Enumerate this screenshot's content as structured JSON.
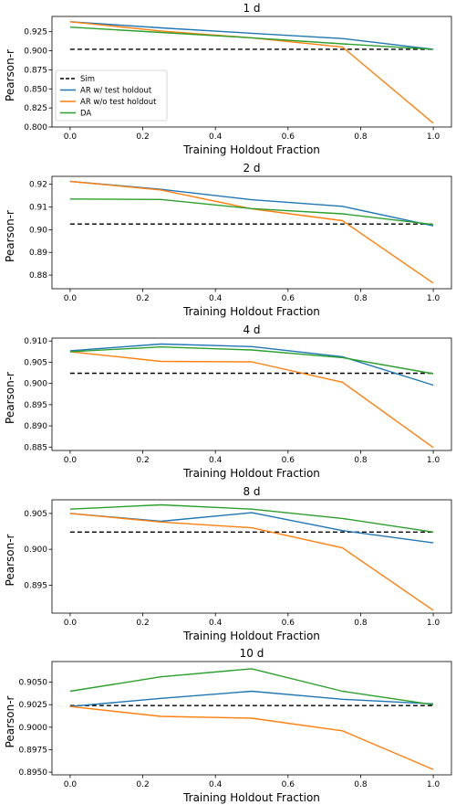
{
  "chart_data": [
    {
      "type": "line",
      "title": "1 d",
      "xlabel": "Training Holdout Fraction",
      "ylabel": "Pearson-r",
      "x": [
        0.0,
        0.25,
        0.5,
        0.75,
        1.0
      ],
      "xlim": [
        -0.05,
        1.05
      ],
      "ylim": [
        0.8,
        0.945
      ],
      "xticks": [
        "0.0",
        "0.2",
        "0.4",
        "0.6",
        "0.8",
        "1.0"
      ],
      "yticks": [
        "0.800",
        "0.825",
        "0.850",
        "0.875",
        "0.900",
        "0.925"
      ],
      "legend": {
        "placement": "center-left",
        "entries": [
          "Sim",
          "AR w/ test holdout",
          "AR w/o test holdout",
          "DA"
        ]
      },
      "series": [
        {
          "name": "Sim",
          "color": "#000000",
          "dashed": true,
          "values": [
            0.902,
            0.902,
            0.902,
            0.902,
            0.902
          ]
        },
        {
          "name": "AR w/ test holdout",
          "color": "#1f77b4",
          "values": [
            0.938,
            0.93,
            0.923,
            0.916,
            0.902
          ]
        },
        {
          "name": "AR w/o test holdout",
          "color": "#ff7f0e",
          "values": [
            0.938,
            0.926,
            0.917,
            0.905,
            0.805
          ]
        },
        {
          "name": "DA",
          "color": "#2ca02c",
          "values": [
            0.931,
            0.924,
            0.917,
            0.909,
            0.902
          ]
        }
      ]
    },
    {
      "type": "line",
      "title": "2 d",
      "xlabel": "Training Holdout Fraction",
      "ylabel": "Pearson-r",
      "x": [
        0.0,
        0.25,
        0.5,
        0.75,
        1.0
      ],
      "xlim": [
        -0.05,
        1.05
      ],
      "ylim": [
        0.874,
        0.9235
      ],
      "xticks": [
        "0.0",
        "0.2",
        "0.4",
        "0.6",
        "0.8",
        "1.0"
      ],
      "yticks": [
        "0.88",
        "0.89",
        "0.90",
        "0.91",
        "0.92"
      ],
      "series": [
        {
          "name": "Sim",
          "color": "#000000",
          "dashed": true,
          "values": [
            0.9025,
            0.9025,
            0.9025,
            0.9025,
            0.9025
          ]
        },
        {
          "name": "AR w/ test holdout",
          "color": "#1f77b4",
          "values": [
            0.9213,
            0.9178,
            0.9132,
            0.9103,
            0.9017
          ]
        },
        {
          "name": "AR w/o test holdout",
          "color": "#ff7f0e",
          "values": [
            0.9213,
            0.9175,
            0.9092,
            0.904,
            0.8765
          ]
        },
        {
          "name": "DA",
          "color": "#2ca02c",
          "values": [
            0.9135,
            0.9133,
            0.9093,
            0.907,
            0.9023
          ]
        }
      ]
    },
    {
      "type": "line",
      "title": "4 d",
      "xlabel": "Training Holdout Fraction",
      "ylabel": "Pearson-r",
      "x": [
        0.0,
        0.25,
        0.5,
        0.75,
        1.0
      ],
      "xlim": [
        -0.05,
        1.05
      ],
      "ylim": [
        0.8842,
        0.9107
      ],
      "xticks": [
        "0.0",
        "0.2",
        "0.4",
        "0.6",
        "0.8",
        "1.0"
      ],
      "yticks": [
        "0.885",
        "0.890",
        "0.895",
        "0.900",
        "0.905",
        "0.910"
      ],
      "series": [
        {
          "name": "Sim",
          "color": "#000000",
          "dashed": true,
          "values": [
            0.9024,
            0.9024,
            0.9024,
            0.9024,
            0.9024
          ]
        },
        {
          "name": "AR w/ test holdout",
          "color": "#1f77b4",
          "values": [
            0.9077,
            0.9093,
            0.9087,
            0.9063,
            0.8996
          ]
        },
        {
          "name": "AR w/o test holdout",
          "color": "#ff7f0e",
          "values": [
            0.9075,
            0.9052,
            0.9051,
            0.9003,
            0.8849
          ]
        },
        {
          "name": "DA",
          "color": "#2ca02c",
          "values": [
            0.9075,
            0.9086,
            0.9079,
            0.9061,
            0.9023
          ]
        }
      ]
    },
    {
      "type": "line",
      "title": "8 d",
      "xlabel": "Training Holdout Fraction",
      "ylabel": "Pearson-r",
      "x": [
        0.0,
        0.25,
        0.5,
        0.75,
        1.0
      ],
      "xlim": [
        -0.05,
        1.05
      ],
      "ylim": [
        0.8911,
        0.9069
      ],
      "xticks": [
        "0.0",
        "0.2",
        "0.4",
        "0.6",
        "0.8",
        "1.0"
      ],
      "yticks": [
        "0.895",
        "0.900",
        "0.905"
      ],
      "series": [
        {
          "name": "Sim",
          "color": "#000000",
          "dashed": true,
          "values": [
            0.9024,
            0.9024,
            0.9024,
            0.9024,
            0.9024
          ]
        },
        {
          "name": "AR w/ test holdout",
          "color": "#1f77b4",
          "values": [
            0.905,
            0.9039,
            0.9051,
            0.9026,
            0.9009
          ]
        },
        {
          "name": "AR w/o test holdout",
          "color": "#ff7f0e",
          "values": [
            0.905,
            0.9038,
            0.903,
            0.9002,
            0.8915
          ]
        },
        {
          "name": "DA",
          "color": "#2ca02c",
          "values": [
            0.9056,
            0.9062,
            0.9056,
            0.9043,
            0.9024
          ]
        }
      ]
    },
    {
      "type": "line",
      "title": "10 d",
      "xlabel": "Training Holdout Fraction",
      "ylabel": "Pearson-r",
      "x": [
        0.0,
        0.25,
        0.5,
        0.75,
        1.0
      ],
      "xlim": [
        -0.05,
        1.05
      ],
      "ylim": [
        0.8947,
        0.9073
      ],
      "xticks": [
        "0.0",
        "0.2",
        "0.4",
        "0.6",
        "0.8",
        "1.0"
      ],
      "yticks": [
        "0.8950",
        "0.8975",
        "0.9000",
        "0.9025",
        "0.9050"
      ],
      "series": [
        {
          "name": "Sim",
          "color": "#000000",
          "dashed": true,
          "values": [
            0.9024,
            0.9024,
            0.9024,
            0.9024,
            0.9024
          ]
        },
        {
          "name": "AR w/ test holdout",
          "color": "#1f77b4",
          "values": [
            0.9023,
            0.9032,
            0.904,
            0.9031,
            0.9026
          ]
        },
        {
          "name": "AR w/o test holdout",
          "color": "#ff7f0e",
          "values": [
            0.9023,
            0.9012,
            0.901,
            0.8996,
            0.8953
          ]
        },
        {
          "name": "DA",
          "color": "#2ca02c",
          "values": [
            0.904,
            0.9056,
            0.9065,
            0.904,
            0.9025
          ]
        }
      ]
    }
  ]
}
